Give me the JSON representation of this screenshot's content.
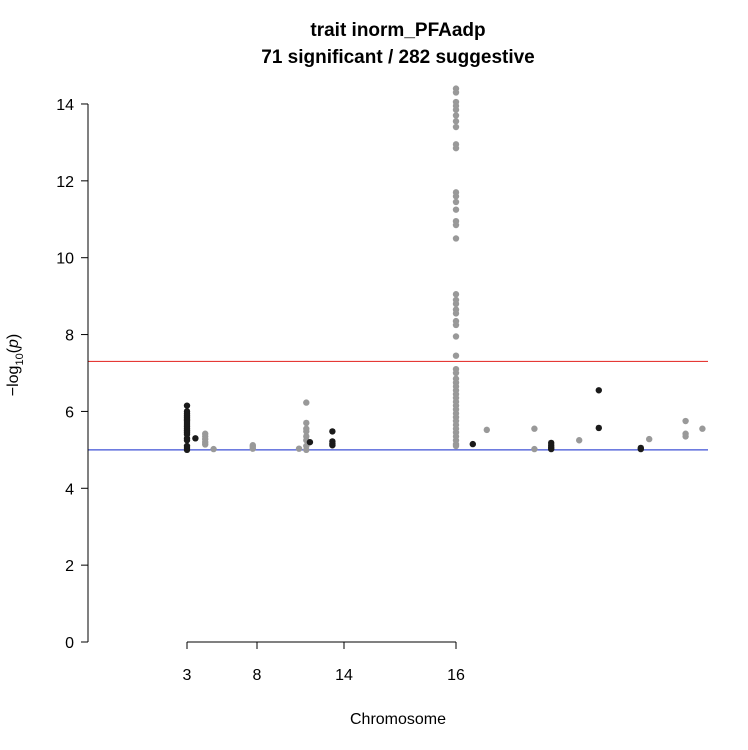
{
  "chart_data": {
    "type": "scatter",
    "title": "trait inorm_PFAadp",
    "subtitle": "71 significant  /  282 suggestive",
    "xlabel": "Chromosome",
    "ylabel_main": "−log",
    "ylabel_sub": "10",
    "ylabel_var": "p",
    "ylim": [
      0,
      14
    ],
    "y_ticks": [
      0,
      2,
      4,
      6,
      8,
      10,
      12,
      14
    ],
    "x_ticks": [
      {
        "label": "3",
        "pos": 3
      },
      {
        "label": "8",
        "pos": 8
      },
      {
        "label": "14",
        "pos": 14
      },
      {
        "label": "16",
        "pos": 16
      }
    ],
    "thresholds": [
      {
        "name": "significant",
        "value": 7.3,
        "color": "#e53935"
      },
      {
        "name": "suggestive",
        "value": 5.0,
        "color": "#3f51d5"
      }
    ],
    "colors": {
      "dark": "#1a1a1a",
      "light": "#999999"
    },
    "points": [
      {
        "x": 3,
        "c": "dark",
        "y": [
          6.15,
          6.0,
          5.95,
          5.9,
          5.85,
          5.8,
          5.75,
          5.7,
          5.65,
          5.6,
          5.55,
          5.5,
          5.45,
          5.4,
          5.3,
          5.25,
          5.1,
          5.05,
          5.0
        ]
      },
      {
        "x": 3.6,
        "c": "dark",
        "y": [
          5.3
        ]
      },
      {
        "x": 4.3,
        "c": "light",
        "y": [
          5.42,
          5.35,
          5.28,
          5.2,
          5.14
        ]
      },
      {
        "x": 4.9,
        "c": "light",
        "y": [
          5.02
        ]
      },
      {
        "x": 7.7,
        "c": "light",
        "y": [
          5.12,
          5.08,
          5.03
        ]
      },
      {
        "x": 10.9,
        "c": "light",
        "y": [
          5.03
        ]
      },
      {
        "x": 11.4,
        "c": "light",
        "y": [
          6.23,
          5.7,
          5.55,
          5.48,
          5.35,
          5.25,
          5.1,
          5.0
        ]
      },
      {
        "x": 11.65,
        "c": "dark",
        "y": [
          5.2
        ]
      },
      {
        "x": 13.2,
        "c": "dark",
        "y": [
          5.48,
          5.22,
          5.16,
          5.12
        ]
      },
      {
        "x": 16,
        "c": "light",
        "y": [
          14.4,
          14.3,
          14.05,
          13.95,
          13.85,
          13.7,
          13.55,
          13.4,
          12.95,
          12.85,
          11.7,
          11.6,
          11.45,
          11.25,
          10.95,
          10.85,
          10.5,
          9.05,
          8.9,
          8.8,
          8.65,
          8.55,
          8.35,
          8.25,
          7.95,
          7.45,
          7.1,
          7.0,
          6.85,
          6.75,
          6.65,
          6.55,
          6.45,
          6.35,
          6.25,
          6.15,
          6.05,
          5.95,
          5.85,
          5.75,
          5.65,
          5.55,
          5.45,
          5.35,
          5.25,
          5.15,
          5.1
        ]
      },
      {
        "x": 16.3,
        "c": "dark",
        "y": [
          5.15
        ]
      },
      {
        "x": 16.55,
        "c": "light",
        "y": [
          5.52
        ]
      },
      {
        "x": 17.4,
        "c": "light",
        "y": [
          5.55,
          5.02
        ]
      },
      {
        "x": 17.7,
        "c": "dark",
        "y": [
          5.18,
          5.12,
          5.06,
          5.02
        ]
      },
      {
        "x": 18.2,
        "c": "light",
        "y": [
          5.25
        ]
      },
      {
        "x": 18.55,
        "c": "dark",
        "y": [
          6.55,
          5.57
        ]
      },
      {
        "x": 19.3,
        "c": "dark",
        "y": [
          5.05,
          5.02
        ]
      },
      {
        "x": 19.45,
        "c": "light",
        "y": [
          5.28
        ]
      },
      {
        "x": 20.1,
        "c": "light",
        "y": [
          5.75,
          5.42,
          5.35
        ]
      },
      {
        "x": 20.4,
        "c": "light",
        "y": [
          5.55
        ]
      }
    ]
  }
}
